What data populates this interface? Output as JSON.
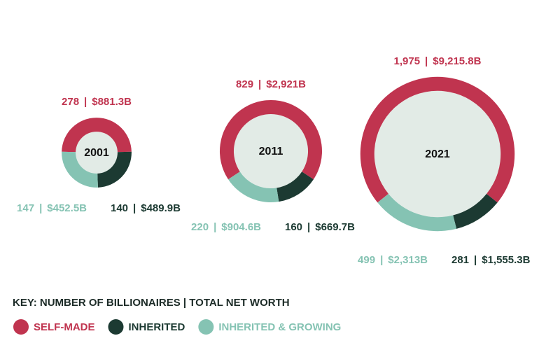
{
  "chart_data": {
    "type": "donut",
    "key_title": "KEY: NUMBER OF BILLIONAIRES | TOTAL NET WORTH",
    "separator": "|",
    "categories": [
      "2001",
      "2011",
      "2021"
    ],
    "series": [
      {
        "name": "SELF-MADE",
        "color": "#c0344f",
        "values": [
          278,
          829,
          1975
        ],
        "value_labels": [
          "278",
          "829",
          "1,975"
        ],
        "net_worth": [
          881.3,
          2921,
          9215.8
        ],
        "net_worth_labels": [
          "$881.3B",
          "$2,921B",
          "$9,215.8B"
        ]
      },
      {
        "name": "INHERITED",
        "color": "#1c3a32",
        "values": [
          140,
          160,
          281
        ],
        "value_labels": [
          "140",
          "160",
          "281"
        ],
        "net_worth": [
          489.9,
          669.7,
          1555.3
        ],
        "net_worth_labels": [
          "$489.9B",
          "$669.7B",
          "$1,555.3B"
        ]
      },
      {
        "name": "INHERITED & GROWING",
        "color": "#85c3b3",
        "values": [
          147,
          220,
          499
        ],
        "value_labels": [
          "147",
          "220",
          "499"
        ],
        "net_worth": [
          452.5,
          904.6,
          2313
        ],
        "net_worth_labels": [
          "$452.5B",
          "$904.6B",
          "$2,313B"
        ]
      }
    ]
  }
}
